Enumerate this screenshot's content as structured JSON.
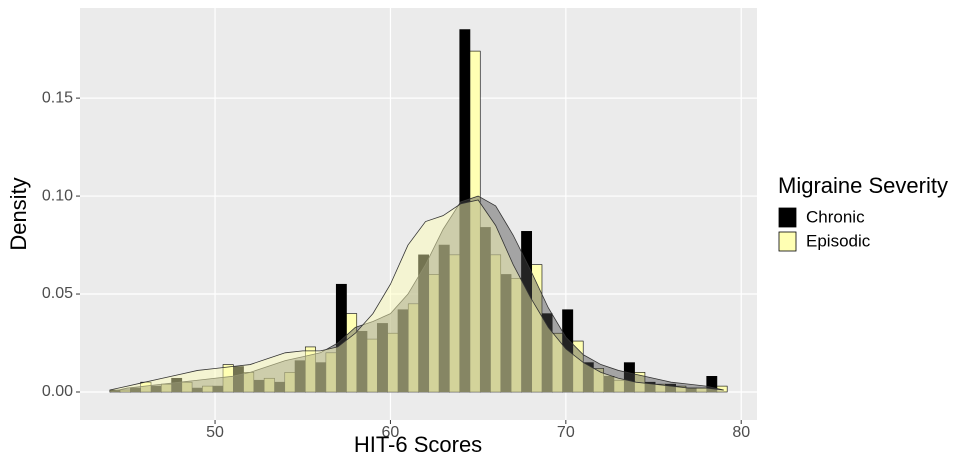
{
  "chart_data": {
    "type": "histogram",
    "x_label": "HIT-6 Scores",
    "y_label": "Density",
    "legend_title": "Migraine Severity",
    "bins": [
      44.0,
      45.17,
      46.35,
      47.52,
      48.69,
      49.87,
      51.04,
      52.21,
      53.39,
      54.56,
      55.73,
      56.91,
      58.08,
      59.25,
      60.43,
      61.6,
      62.77,
      63.95,
      65.12,
      66.29,
      67.47,
      68.64,
      69.81,
      70.99,
      72.16,
      73.33,
      74.51,
      75.68,
      76.85,
      78.03,
      79.2
    ],
    "density_x": [
      44,
      45,
      46,
      47,
      48,
      49,
      50,
      51,
      52,
      53,
      54,
      55,
      56,
      57,
      58,
      59,
      60,
      61,
      62,
      63,
      64,
      65,
      66,
      67,
      68,
      69,
      70,
      71,
      72,
      73,
      74,
      75,
      76,
      77,
      78,
      79
    ],
    "series": [
      {
        "name": "Chronic",
        "color": "#000000",
        "density_color": "#4d4d4d",
        "values": [
          0.001,
          0.002,
          0.003,
          0.007,
          0.002,
          0.003,
          0.013,
          0.006,
          0.005,
          0.016,
          0.015,
          0.055,
          0.031,
          0.035,
          0.042,
          0.07,
          0.075,
          0.185,
          0.084,
          0.06,
          0.082,
          0.04,
          0.042,
          0.015,
          0.008,
          0.015,
          0.005,
          0.004,
          0.002,
          0.008
        ],
        "density": [
          0.0,
          0.002,
          0.003,
          0.004,
          0.005,
          0.006,
          0.007,
          0.008,
          0.01,
          0.013,
          0.016,
          0.018,
          0.02,
          0.025,
          0.033,
          0.036,
          0.04,
          0.05,
          0.065,
          0.083,
          0.097,
          0.1,
          0.095,
          0.08,
          0.062,
          0.043,
          0.028,
          0.019,
          0.014,
          0.011,
          0.009,
          0.007,
          0.005,
          0.004,
          0.003,
          0.001
        ]
      },
      {
        "name": "Episodic",
        "color": "#ffffb3",
        "density_color": "#ffffb3",
        "values": [
          0.001,
          0.005,
          0.004,
          0.005,
          0.003,
          0.014,
          0.01,
          0.007,
          0.01,
          0.023,
          0.02,
          0.04,
          0.027,
          0.03,
          0.045,
          0.06,
          0.07,
          0.174,
          0.07,
          0.058,
          0.065,
          0.03,
          0.026,
          0.012,
          0.006,
          0.01,
          0.004,
          0.003,
          0.002,
          0.003
        ],
        "density": [
          0.001,
          0.003,
          0.005,
          0.007,
          0.009,
          0.011,
          0.012,
          0.013,
          0.014,
          0.017,
          0.02,
          0.021,
          0.021,
          0.023,
          0.03,
          0.04,
          0.055,
          0.075,
          0.087,
          0.09,
          0.096,
          0.098,
          0.085,
          0.065,
          0.048,
          0.033,
          0.022,
          0.015,
          0.01,
          0.007,
          0.005,
          0.004,
          0.003,
          0.002,
          0.002,
          0.001
        ]
      }
    ],
    "xlim": [
      42.3,
      80.9
    ],
    "ylim": [
      -0.0143,
      0.196
    ],
    "xticks": [
      50,
      60,
      70,
      80
    ],
    "yticks": [
      {
        "value": 0,
        "label": "0.00"
      },
      0.05,
      {
        "value": 0.1,
        "label": "0.10"
      },
      0.15
    ],
    "grid": true,
    "legend_position": "right"
  }
}
